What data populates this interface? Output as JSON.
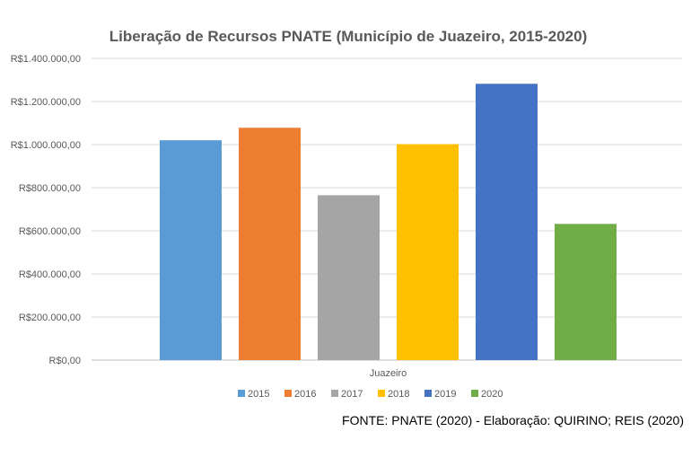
{
  "chart_data": {
    "type": "bar",
    "title": "Liberação de Recursos PNATE (Município de Juazeiro, 2015-2020)",
    "categories": [
      "Juazeiro"
    ],
    "series": [
      {
        "name": "2015",
        "values": [
          1020000
        ],
        "color": "#5B9BD5"
      },
      {
        "name": "2016",
        "values": [
          1078000
        ],
        "color": "#ED7D31"
      },
      {
        "name": "2017",
        "values": [
          765000
        ],
        "color": "#A5A5A5"
      },
      {
        "name": "2018",
        "values": [
          1002000
        ],
        "color": "#FFC000"
      },
      {
        "name": "2019",
        "values": [
          1282000
        ],
        "color": "#4472C4"
      },
      {
        "name": "2020",
        "values": [
          632000
        ],
        "color": "#70AD47"
      }
    ],
    "ylim": [
      0,
      1400000
    ],
    "ytick_labels": [
      "R$0,00",
      "R$200.000,00",
      "R$400.000,00",
      "R$600.000,00",
      "R$800.000,00",
      "R$1.000.000,00",
      "R$1.200.000,00",
      "R$1.400.000,00"
    ],
    "grid": true,
    "legend": "bottom"
  },
  "source_note": "FONTE: PNATE (2020) - Elaboração: QUIRINO; REIS (2020)"
}
